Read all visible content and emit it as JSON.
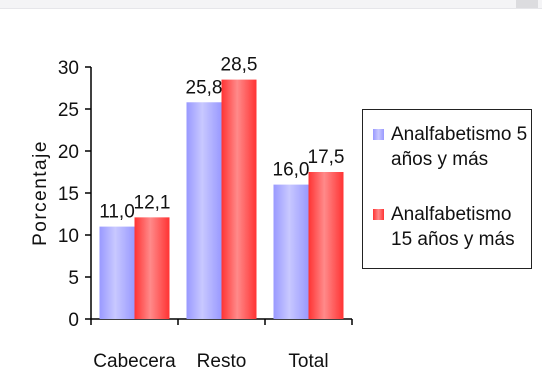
{
  "chart_data": {
    "type": "bar",
    "categories": [
      "Cabecera",
      "Resto",
      "Total"
    ],
    "series": [
      {
        "name": "Analfabetismo 5 años y más",
        "values": [
          11.0,
          25.8,
          16.0
        ],
        "labels": [
          "11,0",
          "25,8",
          "16,0"
        ],
        "color": "#9999ff"
      },
      {
        "name": "Analfabetismo 15 años y más",
        "values": [
          12.1,
          28.5,
          17.5
        ],
        "labels": [
          "12,1",
          "28,5",
          "17,5"
        ],
        "color": "#ff3333"
      }
    ],
    "ylabel": "Porcentaje",
    "ylim": [
      0,
      30
    ],
    "yticks": [
      0,
      5,
      10,
      15,
      20,
      25,
      30
    ],
    "legend_position": "right",
    "grid": false
  }
}
